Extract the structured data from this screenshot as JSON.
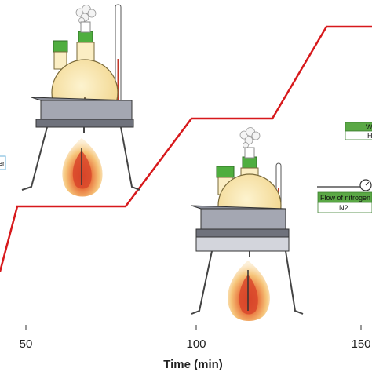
{
  "axis": {
    "x_title": "Time (min)",
    "x_ticks": [
      "50",
      "100",
      "150"
    ]
  },
  "labels": {
    "left_partial": "er",
    "right_box_top": "W",
    "right_box_bottom": "H",
    "nitrogen_flow": "Flow of nitrogen",
    "nitrogen_gas": "N2"
  },
  "colors": {
    "profile_line": "#d7191c",
    "flame_outer": "#f7c878",
    "flame_inner": "#d9482b",
    "flask_fill": "#f6e2a4",
    "stopper_green": "#4fae3f",
    "heater_plate": "#8a8d98",
    "label_green": "#5aa845"
  },
  "icons": [
    "round-bottom-flask-icon",
    "thermometer-icon",
    "flame-icon",
    "tripod-stand-icon",
    "heating-plate-icon",
    "steam-cloud-icon",
    "pressure-gauge-icon"
  ]
}
